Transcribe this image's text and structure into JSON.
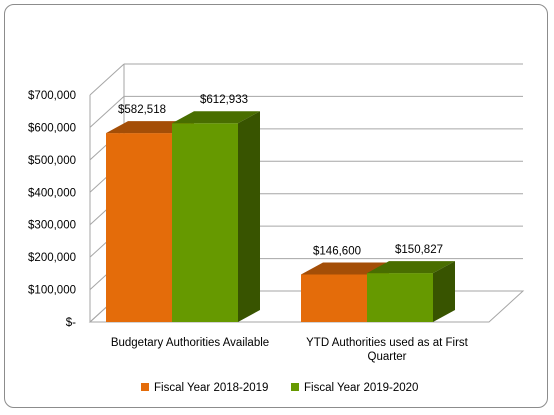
{
  "chart_data": {
    "type": "bar",
    "style": "3d-clustered-column",
    "categories": [
      "Budgetary Authorities Available",
      "YTD Authorities used as at First Quarter"
    ],
    "category_lines": [
      [
        "Budgetary Authorities Available"
      ],
      [
        "YTD Authorities used as at First",
        "Quarter"
      ]
    ],
    "series": [
      {
        "name": "Fiscal Year 2018-2019",
        "values": [
          582518,
          146600
        ],
        "labels": [
          "$582,518",
          "$146,600"
        ],
        "color": "#E46C0A"
      },
      {
        "name": "Fiscal Year 2019-2020",
        "values": [
          612933,
          150827
        ],
        "labels": [
          "$612,933",
          "$150,827"
        ],
        "color": "#669900"
      }
    ],
    "ylim": [
      0,
      700000
    ],
    "yticks": [
      "$-",
      "$100,000",
      "$200,000",
      "$300,000",
      "$400,000",
      "$500,000",
      "$600,000",
      "$700,000"
    ],
    "grid": true,
    "legend": "bottom",
    "title": "",
    "xlabel": "",
    "ylabel": ""
  }
}
